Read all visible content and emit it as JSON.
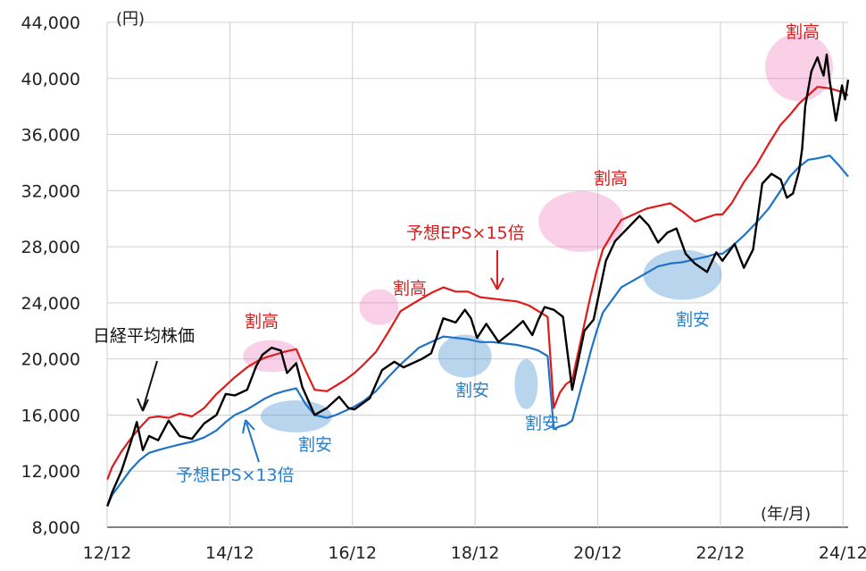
{
  "chart_data": {
    "type": "line",
    "y_unit": "(円)",
    "x_unit": "(年/月)",
    "xlabel": "",
    "ylabel": "",
    "ylim": [
      8000,
      44000
    ],
    "xlim": [
      2012.917,
      2025.0
    ],
    "y_ticks": [
      8000,
      12000,
      16000,
      20000,
      24000,
      28000,
      32000,
      36000,
      40000,
      44000
    ],
    "y_tick_labels": [
      "8,000",
      "12,000",
      "16,000",
      "20,000",
      "24,000",
      "28,000",
      "32,000",
      "36,000",
      "40,000",
      "44,000"
    ],
    "x_ticks": [
      2012.917,
      2014.917,
      2016.917,
      2018.917,
      2020.917,
      2022.917,
      2024.917
    ],
    "x_tick_labels": [
      "12/12",
      "14/12",
      "16/12",
      "18/12",
      "20/12",
      "22/12",
      "24/12"
    ],
    "grid": true,
    "series": [
      {
        "name": "日経平均株価",
        "color": "#000000",
        "x": [
          2012.92,
          2013.0,
          2013.15,
          2013.3,
          2013.4,
          2013.5,
          2013.6,
          2013.75,
          2013.92,
          2014.1,
          2014.3,
          2014.5,
          2014.7,
          2014.85,
          2015.0,
          2015.2,
          2015.35,
          2015.45,
          2015.6,
          2015.75,
          2015.85,
          2016.0,
          2016.1,
          2016.3,
          2016.5,
          2016.7,
          2016.85,
          2016.95,
          2017.2,
          2017.4,
          2017.6,
          2017.75,
          2017.9,
          2018.05,
          2018.2,
          2018.4,
          2018.6,
          2018.75,
          2018.85,
          2018.95,
          2019.1,
          2019.3,
          2019.5,
          2019.7,
          2019.85,
          2019.95,
          2020.05,
          2020.2,
          2020.35,
          2020.5,
          2020.7,
          2020.85,
          2021.05,
          2021.2,
          2021.4,
          2021.6,
          2021.75,
          2021.9,
          2022.05,
          2022.2,
          2022.35,
          2022.5,
          2022.7,
          2022.85,
          2022.95,
          2023.15,
          2023.3,
          2023.45,
          2023.6,
          2023.75,
          2023.9,
          2024.0,
          2024.1,
          2024.2,
          2024.25,
          2024.3,
          2024.4,
          2024.5,
          2024.55,
          2024.6,
          2024.65,
          2024.7,
          2024.8,
          2024.9,
          2024.95,
          2025.0
        ],
        "values": [
          9500,
          10500,
          12000,
          14000,
          15500,
          13500,
          14500,
          14200,
          15600,
          14500,
          14300,
          15400,
          16000,
          17500,
          17400,
          17800,
          19500,
          20300,
          20800,
          20600,
          19000,
          19700,
          18000,
          16000,
          16500,
          17300,
          16500,
          16400,
          17200,
          19200,
          19800,
          19400,
          19700,
          20000,
          20400,
          22900,
          22600,
          23500,
          22900,
          21500,
          22500,
          21200,
          21900,
          22700,
          21700,
          22800,
          23700,
          23500,
          23000,
          17800,
          22000,
          22800,
          27000,
          28400,
          29300,
          30200,
          29500,
          28300,
          29000,
          29300,
          27500,
          26800,
          26200,
          27600,
          27000,
          28200,
          26500,
          27800,
          32500,
          33200,
          32800,
          31500,
          31800,
          33400,
          35000,
          38000,
          40500,
          41500,
          40800,
          40200,
          41700,
          39800,
          37000,
          39500,
          38500,
          39900
        ]
      },
      {
        "name": "予想EPS×15倍",
        "color": "#e01b1b",
        "x": [
          2012.92,
          2013.0,
          2013.15,
          2013.3,
          2013.45,
          2013.6,
          2013.75,
          2013.92,
          2014.1,
          2014.3,
          2014.5,
          2014.7,
          2014.85,
          2015.0,
          2015.2,
          2015.35,
          2015.5,
          2015.65,
          2015.8,
          2016.0,
          2016.15,
          2016.3,
          2016.5,
          2016.65,
          2016.8,
          2016.95,
          2017.1,
          2017.3,
          2017.5,
          2017.7,
          2017.85,
          2018.0,
          2018.2,
          2018.4,
          2018.6,
          2018.8,
          2019.0,
          2019.2,
          2019.4,
          2019.6,
          2019.8,
          2019.95,
          2020.1,
          2020.2,
          2020.3,
          2020.4,
          2020.5,
          2020.6,
          2020.7,
          2020.8,
          2020.9,
          2021.0,
          2021.15,
          2021.3,
          2021.5,
          2021.7,
          2021.9,
          2022.1,
          2022.3,
          2022.5,
          2022.7,
          2022.85,
          2022.95,
          2023.1,
          2023.3,
          2023.5,
          2023.7,
          2023.9,
          2024.05,
          2024.2,
          2024.35,
          2024.5,
          2024.7,
          2024.85,
          2025.0
        ],
        "values": [
          11400,
          12300,
          13400,
          14300,
          15100,
          15800,
          15900,
          15800,
          16100,
          15900,
          16500,
          17500,
          18100,
          18700,
          19400,
          19800,
          20100,
          20300,
          20500,
          20700,
          19200,
          17800,
          17700,
          18100,
          18500,
          19000,
          19600,
          20500,
          21900,
          23400,
          23800,
          24200,
          24700,
          25100,
          24800,
          24800,
          24400,
          24300,
          24200,
          24100,
          23800,
          23400,
          23000,
          16500,
          17600,
          18200,
          18500,
          20500,
          22500,
          24500,
          26300,
          27800,
          28900,
          29900,
          30300,
          30700,
          30900,
          31100,
          30500,
          29800,
          30100,
          30300,
          30300,
          31100,
          32600,
          33800,
          35300,
          36700,
          37400,
          38200,
          38800,
          39400,
          39300,
          39100,
          38800
        ]
      },
      {
        "name": "予想EPS×13倍",
        "color": "#1e73c8",
        "x": [
          2012.92,
          2013.0,
          2013.15,
          2013.3,
          2013.45,
          2013.6,
          2013.75,
          2013.92,
          2014.1,
          2014.3,
          2014.5,
          2014.7,
          2014.85,
          2015.0,
          2015.2,
          2015.35,
          2015.5,
          2015.65,
          2015.8,
          2016.0,
          2016.15,
          2016.3,
          2016.5,
          2016.65,
          2016.8,
          2016.95,
          2017.1,
          2017.3,
          2017.5,
          2017.7,
          2017.85,
          2018.0,
          2018.2,
          2018.4,
          2018.6,
          2018.8,
          2019.0,
          2019.2,
          2019.4,
          2019.6,
          2019.8,
          2019.95,
          2020.1,
          2020.2,
          2020.3,
          2020.4,
          2020.5,
          2020.6,
          2020.7,
          2020.8,
          2020.9,
          2021.0,
          2021.15,
          2021.3,
          2021.5,
          2021.7,
          2021.9,
          2022.1,
          2022.3,
          2022.5,
          2022.7,
          2022.85,
          2022.95,
          2023.1,
          2023.3,
          2023.5,
          2023.7,
          2023.9,
          2024.05,
          2024.2,
          2024.35,
          2024.5,
          2024.7,
          2024.85,
          2025.0
        ],
        "values": [
          9500,
          10300,
          11200,
          12100,
          12800,
          13300,
          13500,
          13700,
          13900,
          14100,
          14400,
          14900,
          15500,
          16000,
          16400,
          16800,
          17200,
          17500,
          17700,
          17900,
          16800,
          16000,
          15800,
          16000,
          16300,
          16600,
          17000,
          17700,
          18700,
          19600,
          20200,
          20800,
          21200,
          21600,
          21500,
          21400,
          21200,
          21200,
          21100,
          21000,
          20800,
          20600,
          20200,
          15000,
          15200,
          15300,
          15600,
          17200,
          18800,
          20500,
          22000,
          23300,
          24200,
          25100,
          25600,
          26100,
          26600,
          26800,
          26900,
          27100,
          27300,
          27500,
          27500,
          28000,
          28800,
          29700,
          30700,
          32000,
          33000,
          33700,
          34200,
          34300,
          34500,
          33800,
          33000
        ]
      }
    ],
    "annotations": {
      "series_labels": [
        "日経平均株価",
        "予想EPS×15倍",
        "予想EPS×13倍"
      ],
      "overvalued": "割高",
      "undervalued": "割安"
    }
  }
}
